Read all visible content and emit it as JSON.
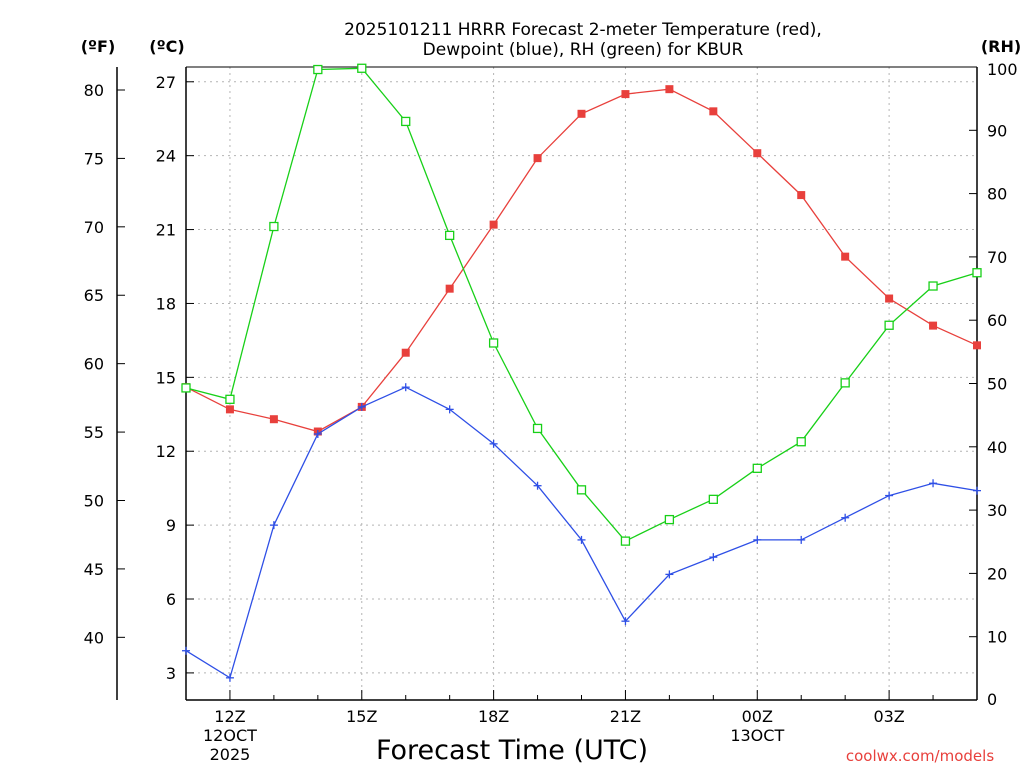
{
  "colors": {
    "temperature": "#e8403c",
    "dewpoint": "#2e4fe6",
    "rh": "#18d018",
    "grid": "#b4b4b4",
    "credit": "#e8403c"
  },
  "chart_data": {
    "type": "line",
    "title_line1": "2025101211 HRRR Forecast 2-meter Temperature (red),",
    "title_line2": "Dewpoint (blue), RH (green) for KBUR",
    "xlabel": "Forecast Time (UTC)",
    "credit": "coolwx.com/models",
    "x_hours": [
      11,
      12,
      13,
      14,
      15,
      16,
      17,
      18,
      19,
      20,
      21,
      22,
      23,
      24,
      25,
      26,
      27,
      28,
      29
    ],
    "xlim": [
      11,
      29
    ],
    "x_ticks": [
      {
        "hour": 12,
        "label": "12Z",
        "sub1": "12OCT",
        "sub2": "2025"
      },
      {
        "hour": 15,
        "label": "15Z",
        "sub1": "",
        "sub2": ""
      },
      {
        "hour": 18,
        "label": "18Z",
        "sub1": "",
        "sub2": ""
      },
      {
        "hour": 21,
        "label": "21Z",
        "sub1": "",
        "sub2": ""
      },
      {
        "hour": 24,
        "label": "00Z",
        "sub1": "13OCT",
        "sub2": ""
      },
      {
        "hour": 27,
        "label": "03Z",
        "sub1": "",
        "sub2": ""
      }
    ],
    "celsius_axis": {
      "unit": "(ºC)",
      "ylim": [
        1.9,
        27.6
      ],
      "ticks": [
        3,
        6,
        9,
        12,
        15,
        18,
        21,
        24,
        27
      ]
    },
    "fahrenheit_axis": {
      "unit": "(ºF)",
      "ticks": [
        40,
        45,
        50,
        55,
        60,
        65,
        70,
        75,
        80
      ]
    },
    "rh_axis": {
      "unit": "(RH)",
      "ylim": [
        0,
        100
      ],
      "ticks": [
        0,
        10,
        20,
        30,
        40,
        50,
        60,
        70,
        80,
        90,
        100
      ]
    },
    "series": [
      {
        "name": "Temperature",
        "axis": "C",
        "marker": "filled-square",
        "color": "#e8403c",
        "values": [
          14.6,
          13.7,
          13.3,
          12.8,
          13.8,
          16.0,
          18.6,
          21.2,
          23.9,
          25.7,
          26.5,
          26.7,
          25.8,
          24.1,
          22.4,
          19.9,
          18.2,
          17.1,
          16.3
        ]
      },
      {
        "name": "Dewpoint",
        "axis": "C",
        "marker": "plus",
        "color": "#2e4fe6",
        "values": [
          3.9,
          2.8,
          9.0,
          12.7,
          13.8,
          14.6,
          13.7,
          12.3,
          10.6,
          8.4,
          5.1,
          7.0,
          7.7,
          8.4,
          8.4,
          9.3,
          10.2,
          10.7,
          10.4
        ]
      },
      {
        "name": "RH",
        "axis": "RH",
        "marker": "open-square",
        "color": "#18d018",
        "values": [
          49.3,
          47.5,
          74.8,
          99.6,
          99.8,
          91.4,
          73.4,
          56.4,
          42.9,
          33.2,
          25.1,
          28.5,
          31.7,
          36.6,
          40.8,
          50.1,
          59.2,
          65.4,
          67.5
        ]
      }
    ]
  }
}
